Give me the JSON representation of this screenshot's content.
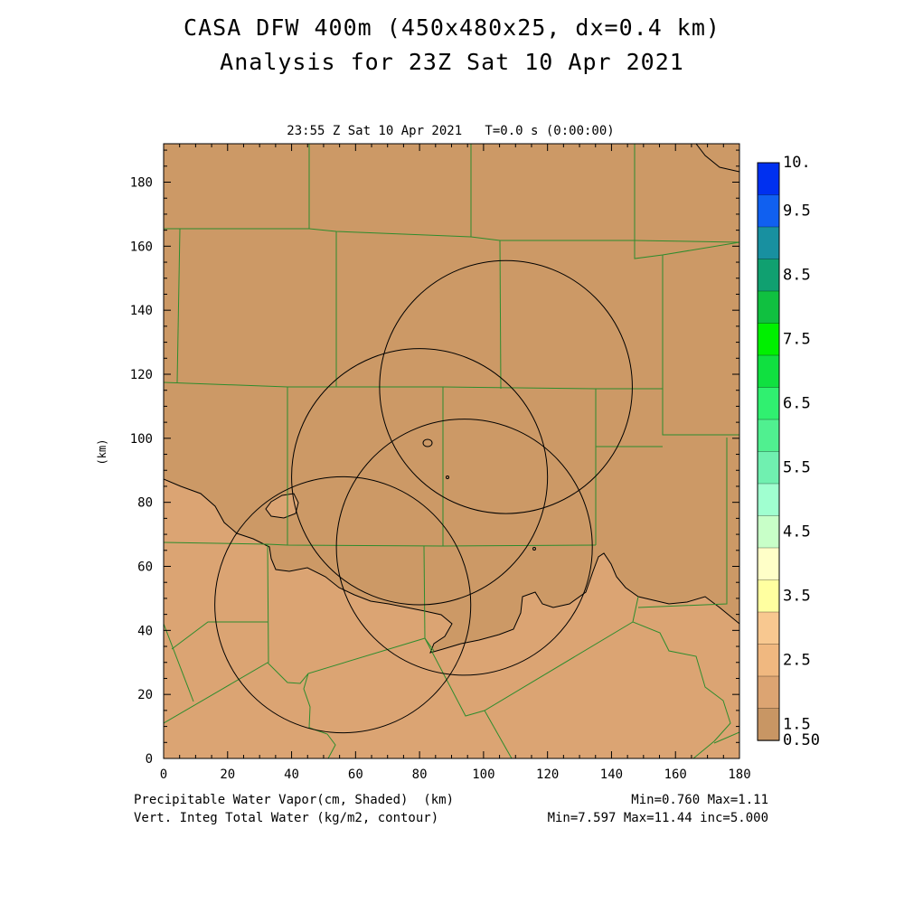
{
  "header": {
    "title_line1": "CASA DFW 400m (450x480x25, dx=0.4 km)",
    "title_line2": "Analysis for 23Z Sat 10 Apr 2021",
    "subtitle": "23:55 Z Sat 10 Apr 2021   T=0.0 s (0:00:00)"
  },
  "footer": {
    "shaded_label": "Precipitable Water Vapor(cm, Shaded)  (km)",
    "contour_label": "Vert. Integ Total Water (kg/m2, contour)",
    "shaded_stats": "Min=0.760 Max=1.11",
    "contour_stats": "Min=7.597 Max=11.44 inc=5.000"
  },
  "chart_data": {
    "type": "heatmap",
    "xlabel": "",
    "ylabel": "(km)",
    "xlim": [
      0,
      180
    ],
    "ylim": [
      0,
      192
    ],
    "x_ticks": [
      0,
      20,
      40,
      60,
      80,
      100,
      120,
      140,
      160,
      180
    ],
    "y_ticks": [
      0,
      20,
      40,
      60,
      80,
      100,
      120,
      140,
      160,
      180
    ],
    "x_tick_labels": [
      "0",
      "20",
      "40",
      "60",
      "80",
      "100",
      "120",
      "140",
      "160",
      "180"
    ],
    "y_tick_labels": [
      "0",
      "20",
      "40",
      "60",
      "80",
      "100",
      "120",
      "140",
      "160",
      "180"
    ],
    "colorbar": {
      "labels": [
        "10.",
        "9.5",
        "8.5",
        "7.5",
        "6.5",
        "5.5",
        "4.5",
        "3.5",
        "2.5",
        "1.5",
        "0.50"
      ],
      "colors": [
        "#0030f0",
        "#1060f0",
        "#1890a0",
        "#10a060",
        "#10c030",
        "#00f000",
        "#10e040",
        "#30f070",
        "#50f090",
        "#70f0b0",
        "#a0ffd0",
        "#c8ffc8",
        "#ffffc8",
        "#ffff a0",
        "#f8c890",
        "#f0b880",
        "#dca472",
        "#c89664"
      ]
    },
    "fill_colors": {
      "low": "#cc9966",
      "high": "#dba473"
    },
    "range_rings": [
      {
        "cx": 107,
        "cy": 116,
        "r": 39.5
      },
      {
        "cx": 80,
        "cy": 88,
        "r": 40
      },
      {
        "cx": 94,
        "cy": 66,
        "r": 40
      },
      {
        "cx": 56,
        "cy": 48,
        "r": 40
      }
    ]
  }
}
